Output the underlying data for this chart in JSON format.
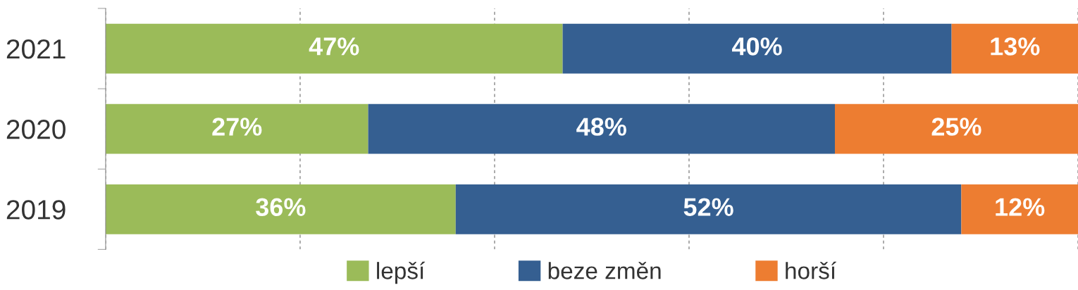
{
  "chart_data": {
    "type": "bar",
    "orientation": "horizontal",
    "stacked": true,
    "categories": [
      "2021",
      "2020",
      "2019"
    ],
    "series": [
      {
        "name": "lepší",
        "color": "#9bbb59",
        "values": [
          47,
          27,
          36
        ],
        "value_labels": [
          "47%",
          "27%",
          "36%"
        ]
      },
      {
        "name": "beze změn",
        "color": "#355f91",
        "values": [
          40,
          48,
          52
        ],
        "value_labels": [
          "40%",
          "48%",
          "52%"
        ]
      },
      {
        "name": "horší",
        "color": "#ed7d31",
        "values": [
          13,
          25,
          12
        ],
        "value_labels": [
          "13%",
          "25%",
          "12%"
        ]
      }
    ],
    "tick_labels": "y",
    "grid": "x",
    "legend": "bottom"
  }
}
